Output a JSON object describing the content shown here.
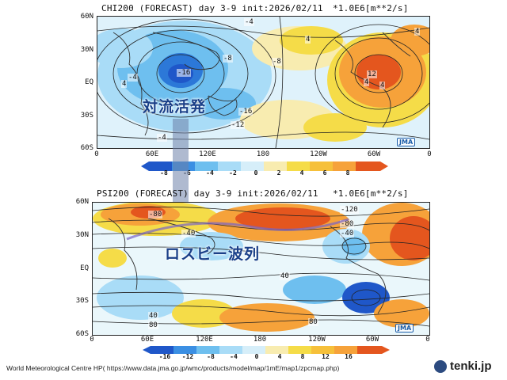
{
  "top_panel": {
    "title": "CHI200 (FORECAST) day 3-9 init:2026/02/11",
    "unit": "*1.0E6[m**2/s]",
    "lat_labels": [
      "60N",
      "30N",
      "EQ",
      "30S",
      "60S"
    ],
    "lon_labels": [
      "0",
      "60E",
      "120E",
      "180",
      "120W",
      "60W",
      "0"
    ],
    "colorbar_ticks": [
      "-8",
      "-6",
      "-4",
      "-2",
      "0",
      "2",
      "4",
      "6",
      "8"
    ],
    "contour_labels": [
      "-16",
      "-8",
      "-8",
      "-12",
      "-16",
      "-4",
      "-4",
      "4",
      "4",
      "12",
      "4",
      "4",
      "-4",
      "4"
    ],
    "logo": "JMA",
    "annotation": "対流活発"
  },
  "bottom_panel": {
    "title": "PSI200 (FORECAST) day 3-9 init:2026/02/11",
    "unit": "*1.0E6[m**2/s]",
    "lat_labels": [
      "60N",
      "30N",
      "EQ",
      "30S",
      "60S"
    ],
    "lon_labels": [
      "0",
      "60E",
      "120E",
      "180",
      "120W",
      "60W",
      "0"
    ],
    "colorbar_ticks": [
      "-16",
      "-12",
      "-8",
      "-4",
      "0",
      "4",
      "8",
      "12",
      "16"
    ],
    "contour_labels": [
      "-80",
      "-40",
      "-120",
      "-80",
      "-40",
      "40",
      "40",
      "80",
      "80"
    ],
    "logo": "JMA",
    "annotation": "ロスビー波列"
  },
  "colors": {
    "deep_blue": "#1f57c9",
    "mid_blue": "#4aa3ea",
    "light_blue": "#a9dcf7",
    "pale": "#f6f7ea",
    "yellow": "#f5dc48",
    "orange": "#f6a23a",
    "red_orange": "#e4561e",
    "annotation_text": "#1a3f88"
  },
  "footer": {
    "source": "World Meteorological Centre HP( https://www.data.jma.go.jp/wmc/products/model/map/1mE/map1/zpcmap.php)",
    "brand": "tenki.jp"
  }
}
